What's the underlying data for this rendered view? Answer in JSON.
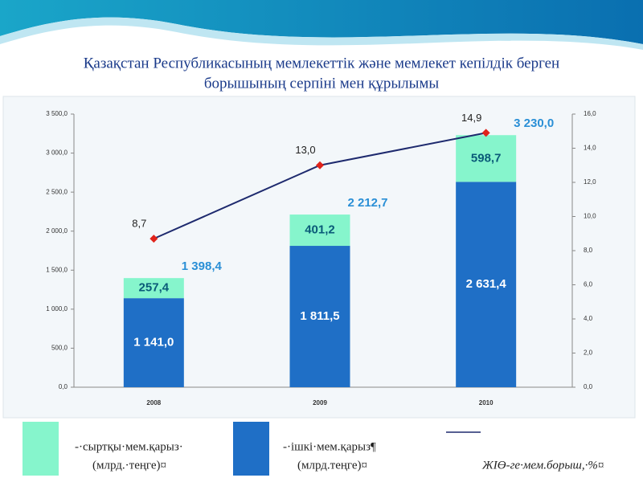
{
  "chart_data": {
    "type": "stacked-bar-line",
    "title": "Қазақстан Республикасының мемлекеттік және мемлекет кепілдік берген",
    "subtitle": "борышының серпіні мен құрылымы",
    "categories": [
      "2008",
      "2009",
      "2010"
    ],
    "series": [
      {
        "name": "-·ішкі·мем.қарыз¶",
        "unit": "(млрд.теңге)¤",
        "color": "#1f6fc6",
        "values": [
          1141.0,
          1811.5,
          2631.4
        ],
        "value_labels": [
          "1 141,0",
          "1 811,5",
          "2 631,4"
        ]
      },
      {
        "name": "-·сыртқы·мем.қарыз·",
        "unit": "(млрд.·теңге)¤",
        "color": "#86f5cc",
        "values": [
          257.4,
          401.2,
          598.7
        ],
        "value_labels": [
          "257,4",
          "401,2",
          "598,7"
        ]
      },
      {
        "name": "ЖІӨ-ге·мем.борыш,·%¤",
        "color": "#1e2a6e",
        "marker_color": "#e0231b",
        "axis": "y2",
        "values": [
          8.7,
          13.0,
          14.9
        ],
        "value_labels": [
          "8,7",
          "13,0",
          "14,9"
        ]
      }
    ],
    "totals": {
      "values": [
        1398.4,
        2212.7,
        3230.0
      ],
      "value_labels": [
        "1 398,4",
        "2 212,7",
        "3 230,0"
      ],
      "color": "#2a8fd6"
    },
    "ylim": [
      0,
      3500
    ],
    "yticks": [
      {
        "value": 0,
        "label": "0,0"
      },
      {
        "value": 500,
        "label": "500,0"
      },
      {
        "value": 1000,
        "label": "1 000,0"
      },
      {
        "value": 1500,
        "label": "1 500,0"
      },
      {
        "value": 2000,
        "label": "2 000,0"
      },
      {
        "value": 2500,
        "label": "2 500,0"
      },
      {
        "value": 3000,
        "label": "3 000,0"
      },
      {
        "value": 3500,
        "label": "3 500,0"
      }
    ],
    "y2lim": [
      0,
      16
    ],
    "y2ticks": [
      {
        "value": 0,
        "label": "0,0"
      },
      {
        "value": 2,
        "label": "2,0"
      },
      {
        "value": 4,
        "label": "4,0"
      },
      {
        "value": 6,
        "label": "6,0"
      },
      {
        "value": 8,
        "label": "8,0"
      },
      {
        "value": 10,
        "label": "10,0"
      },
      {
        "value": 12,
        "label": "12,0"
      },
      {
        "value": 14,
        "label": "14,0"
      },
      {
        "value": 16,
        "label": "16,0"
      }
    ]
  }
}
